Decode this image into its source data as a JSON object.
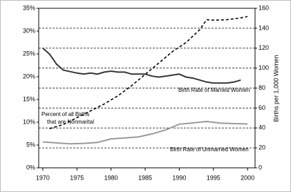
{
  "chart_data": {
    "type": "line",
    "y_label": "Births per 1,000 Women",
    "xlim": [
      1969.4,
      2001.1
    ],
    "xticks": [
      1970,
      1975,
      1980,
      1985,
      1990,
      1995,
      2000
    ],
    "ylim": [
      0,
      35
    ],
    "yticks": [
      {
        "value": 0,
        "label": "0%"
      },
      {
        "value": 5,
        "label": "5%"
      },
      {
        "value": 10,
        "label": "10%"
      },
      {
        "value": 15,
        "label": "15%"
      },
      {
        "value": 20,
        "label": "20%"
      },
      {
        "value": 25,
        "label": "25%"
      },
      {
        "value": 30,
        "label": "30%"
      },
      {
        "value": 35,
        "label": "35%"
      }
    ],
    "y2lim": [
      0,
      160
    ],
    "y2ticks": [
      0,
      20,
      40,
      60,
      80,
      100,
      120,
      140,
      160
    ],
    "grid": true,
    "series": [
      {
        "name": "Percent of all Births that are Nonmarital",
        "color": "#000000",
        "dashed": true,
        "axis": "y",
        "x": [
          1971,
          1973,
          1975,
          1977,
          1979,
          1981,
          1983,
          1985,
          1987,
          1989,
          1991,
          1993,
          1994,
          1995,
          1997,
          1999,
          2000
        ],
        "values": [
          8.6,
          9.5,
          11,
          12.5,
          14,
          15.8,
          18,
          20.5,
          23,
          25.5,
          27.5,
          30.3,
          32.5,
          32.4,
          32.5,
          32.9,
          33.2
        ]
      },
      {
        "name": "Birth Rate of Married Women",
        "color": "#333333",
        "dashed": false,
        "axis": "y2",
        "x": [
          1970,
          1971,
          1972,
          1973,
          1975,
          1976,
          1977,
          1978,
          1979,
          1980,
          1981,
          1982,
          1983,
          1984,
          1985,
          1986,
          1987,
          1988,
          1989,
          1990,
          1991,
          1992,
          1993,
          1994,
          1995,
          1996,
          1997,
          1998,
          1999
        ],
        "values": [
          120,
          114,
          104,
          98,
          95,
          94,
          95,
          94,
          96,
          97,
          96,
          96,
          94,
          94,
          94,
          92,
          91,
          92,
          93,
          94,
          91,
          90,
          88,
          86,
          85,
          85,
          85,
          86,
          88
        ]
      },
      {
        "name": "Birth Rate of Unmarried Women",
        "color": "#999999",
        "dashed": false,
        "axis": "y2",
        "x": [
          1970,
          1972,
          1974,
          1976,
          1978,
          1980,
          1982,
          1984,
          1986,
          1988,
          1990,
          1992,
          1994,
          1996,
          1998,
          2000
        ],
        "values": [
          26,
          25,
          24,
          24.5,
          25.5,
          29,
          30,
          31,
          34,
          38,
          43.8,
          45,
          46.5,
          44.8,
          44.3,
          44
        ]
      }
    ]
  }
}
